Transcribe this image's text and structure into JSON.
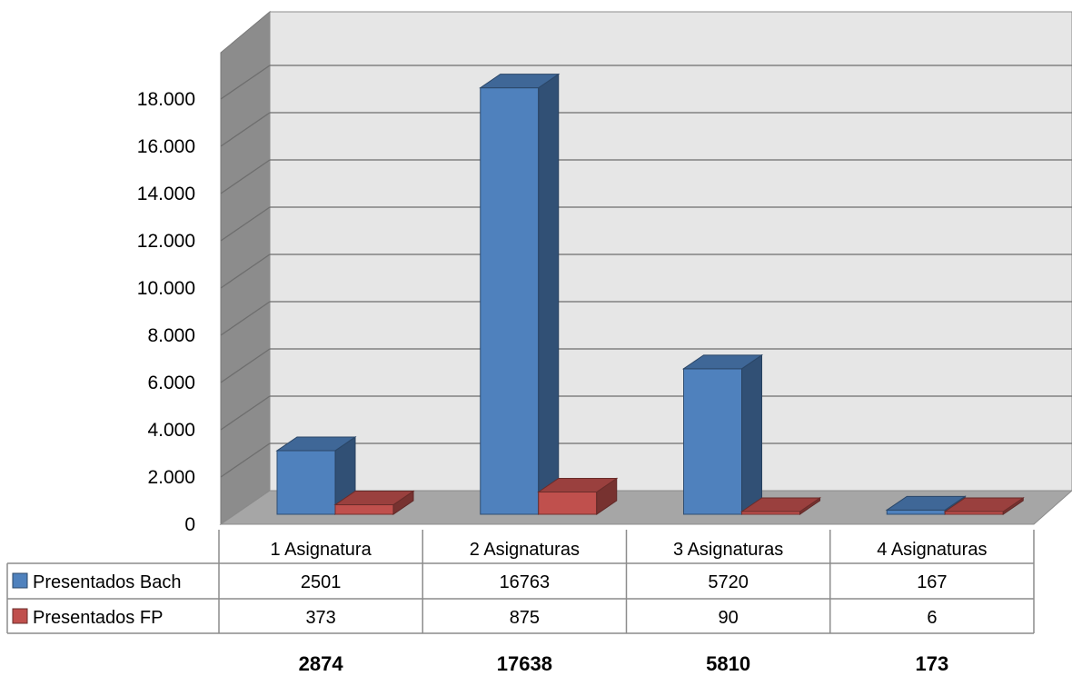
{
  "chart_data": {
    "type": "bar",
    "categories": [
      "1 Asignatura",
      "2 Asignaturas",
      "3 Asignaturas",
      "4 Asignaturas"
    ],
    "series": [
      {
        "name": "Presentados Bach",
        "values": [
          2501,
          16763,
          5720,
          167
        ],
        "color": "#4F81BD"
      },
      {
        "name": "Presentados FP",
        "values": [
          373,
          875,
          90,
          6
        ],
        "color": "#C0504D"
      }
    ],
    "table_rows": [
      {
        "label": "Presentados Bach",
        "cells": [
          "2501",
          "16763",
          "5720",
          "167"
        ]
      },
      {
        "label": "Presentados FP",
        "cells": [
          "373",
          "875",
          "90",
          "6"
        ]
      }
    ],
    "totals": [
      "2874",
      "17638",
      "5810",
      "173"
    ],
    "ylim": [
      0,
      18000
    ],
    "yticks": [
      0,
      2000,
      4000,
      6000,
      8000,
      10000,
      12000,
      14000,
      16000,
      18000
    ],
    "ytick_labels": [
      "0",
      "2.000",
      "4.000",
      "6.000",
      "8.000",
      "10.000",
      "12.000",
      "14.000",
      "16.000",
      "18.000"
    ],
    "grid": true,
    "three_d": true,
    "legend": "data-table"
  }
}
